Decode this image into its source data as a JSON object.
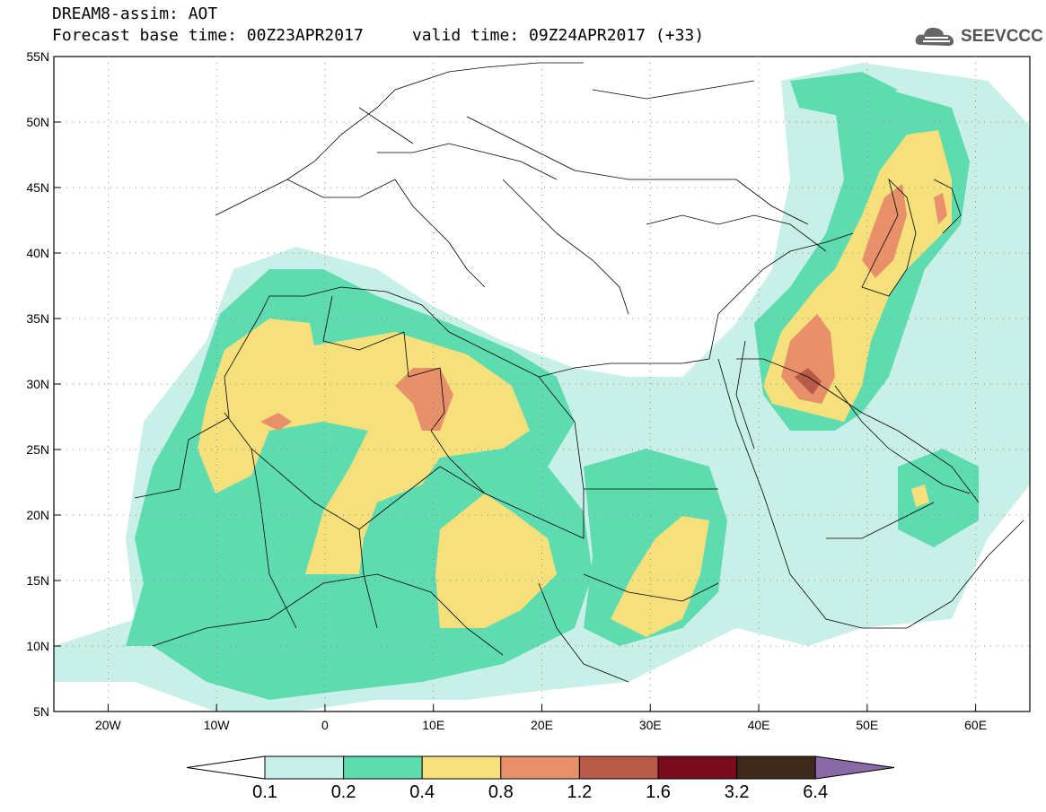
{
  "header": {
    "title_line1": "DREAM8-assim: AOT",
    "title_line2": "Forecast base time: 00Z23APR2017     valid time: 09Z24APR2017 (+33)"
  },
  "logo": {
    "text": "SEEVCCC",
    "icon": "cloud-icon"
  },
  "map": {
    "lat_labels": [
      "55N",
      "50N",
      "45N",
      "40N",
      "35N",
      "30N",
      "25N",
      "20N",
      "15N",
      "10N",
      "5N"
    ],
    "lon_labels": [
      "20W",
      "10W",
      "0",
      "10E",
      "20E",
      "30E",
      "40E",
      "50E",
      "60E"
    ],
    "lon_range": [
      -25,
      65
    ],
    "lat_range": [
      5,
      55
    ]
  },
  "colorbar": {
    "labels": [
      "0.1",
      "0.2",
      "0.4",
      "0.8",
      "1.2",
      "1.6",
      "3.2",
      "6.4"
    ],
    "colors": [
      "#ffffff",
      "#c8f0e8",
      "#5edcb0",
      "#f5e07c",
      "#e8906a",
      "#b85a48",
      "#7a0a1e",
      "#3e2a1a",
      "#8a6aa6"
    ]
  }
}
